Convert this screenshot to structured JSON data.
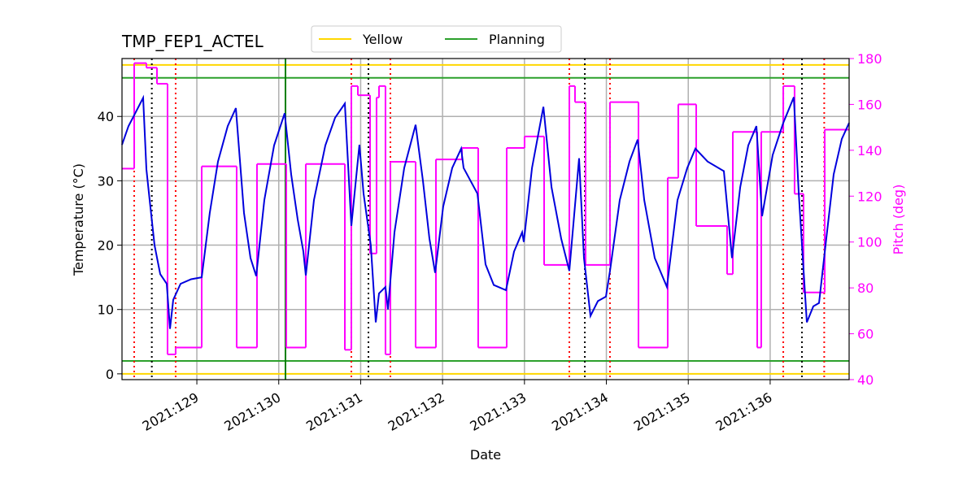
{
  "chart_data": {
    "type": "line",
    "title": "TMP_FEP1_ACTEL",
    "xlabel": "Date",
    "ylabel": "Temperature (°C)",
    "y2label": "Pitch (deg)",
    "y2color": "magenta",
    "grid": true,
    "xlim": [
      128.086,
      136.964
    ],
    "xticks": [
      {
        "value": 129,
        "label": "2021:129"
      },
      {
        "value": 130,
        "label": "2021:130"
      },
      {
        "value": 131,
        "label": "2021:131"
      },
      {
        "value": 132,
        "label": "2021:132"
      },
      {
        "value": 133,
        "label": "2021:133"
      },
      {
        "value": 134,
        "label": "2021:134"
      },
      {
        "value": 135,
        "label": "2021:135"
      },
      {
        "value": 136,
        "label": "2021:136"
      }
    ],
    "ylim": [
      -0.9,
      49
    ],
    "yticks": [
      0,
      10,
      20,
      30,
      40
    ],
    "y2lim": [
      40,
      180
    ],
    "y2ticks": [
      40,
      60,
      80,
      100,
      120,
      140,
      160,
      180
    ],
    "series": [
      {
        "color": "#0000dd",
        "x": [
          128.086,
          128.165,
          128.235,
          128.344,
          128.384,
          128.424,
          128.483,
          128.553,
          128.632,
          128.672,
          128.712,
          128.801,
          128.93,
          129.059,
          129.158,
          129.258,
          129.377,
          129.476,
          129.576,
          129.655,
          129.725,
          129.824,
          129.943,
          130.072,
          130.152,
          130.231,
          130.301,
          130.33,
          130.43,
          130.569,
          130.688,
          130.807,
          130.886,
          130.985,
          131.035,
          131.124,
          131.184,
          131.224,
          131.303,
          131.333,
          131.413,
          131.532,
          131.671,
          131.76,
          131.84,
          131.909,
          132.008,
          132.118,
          132.227,
          132.257,
          132.426,
          132.525,
          132.625,
          132.774,
          132.873,
          132.972,
          132.992,
          133.092,
          133.231,
          133.33,
          133.449,
          133.548,
          133.667,
          133.727,
          133.806,
          133.896,
          133.995,
          134.044,
          134.164,
          134.283,
          134.382,
          134.462,
          134.591,
          134.74,
          134.869,
          134.988,
          135.087,
          135.236,
          135.435,
          135.534,
          135.634,
          135.733,
          135.832,
          135.901,
          136.031,
          136.16,
          136.289,
          136.349,
          136.448,
          136.527,
          136.597,
          136.676,
          136.775,
          136.875,
          136.964
        ],
        "values": [
          35.6,
          38.5,
          40.2,
          42.9,
          31.8,
          27,
          20,
          15.5,
          14,
          7,
          11.5,
          14,
          14.7,
          15,
          25,
          33,
          38.5,
          41.3,
          25,
          18,
          15.2,
          27,
          35.5,
          40.5,
          31,
          24,
          19,
          15.3,
          27,
          35.5,
          39.8,
          42,
          23,
          35.6,
          28,
          20,
          8,
          12.5,
          13.5,
          10,
          22,
          32,
          38.7,
          30,
          21,
          15.7,
          26,
          32,
          35,
          32,
          28,
          17,
          13.8,
          13,
          19,
          22,
          20.5,
          32,
          41.5,
          29,
          21,
          16,
          33.5,
          18,
          9,
          11.3,
          12,
          16,
          27,
          33,
          36.4,
          27,
          18,
          13.5,
          27,
          32,
          35,
          33,
          31.5,
          18,
          29,
          35.5,
          38.5,
          24.5,
          34,
          39,
          43,
          28,
          8,
          10.5,
          11,
          20,
          31,
          36.5,
          39
        ]
      },
      {
        "color": "magenta",
        "axis": "y2",
        "step": "post",
        "x": [
          128.086,
          128.235,
          128.384,
          128.513,
          128.642,
          128.741,
          129.059,
          129.486,
          129.734,
          130.092,
          130.33,
          130.807,
          130.886,
          130.966,
          131.115,
          131.194,
          131.224,
          131.303,
          131.363,
          131.671,
          131.919,
          132.237,
          132.435,
          132.783,
          133.001,
          133.24,
          133.548,
          133.617,
          133.746,
          134.044,
          134.392,
          134.749,
          134.878,
          135.097,
          135.474,
          135.544,
          135.842,
          135.891,
          136.16,
          136.298,
          136.407,
          136.666,
          136.964
        ],
        "values": [
          132,
          178,
          176,
          169,
          51,
          54,
          133,
          54,
          134,
          54,
          134,
          53,
          168,
          164,
          95,
          163,
          168,
          51,
          135,
          54,
          136,
          141,
          54,
          141,
          146,
          90,
          168,
          161,
          90,
          161,
          54,
          128,
          160,
          107,
          86,
          148,
          54,
          148,
          168,
          121,
          78,
          149,
          149
        ]
      }
    ],
    "limits": [
      {
        "name": "Yellow",
        "color": "gold",
        "values": [
          48,
          0
        ]
      },
      {
        "name": "Planning",
        "color": "#2ca02c",
        "values": [
          46,
          2
        ]
      }
    ],
    "vlines": [
      {
        "color": "red",
        "style": "dotted",
        "x": [
          128.235,
          128.741,
          130.886,
          131.363,
          133.548,
          134.044,
          136.16,
          136.66
        ]
      },
      {
        "color": "black",
        "style": "dotted",
        "x": [
          128.45,
          131.095,
          133.737,
          136.388
        ]
      },
      {
        "color": "green",
        "style": "solid",
        "x": [
          130.082
        ]
      }
    ]
  }
}
